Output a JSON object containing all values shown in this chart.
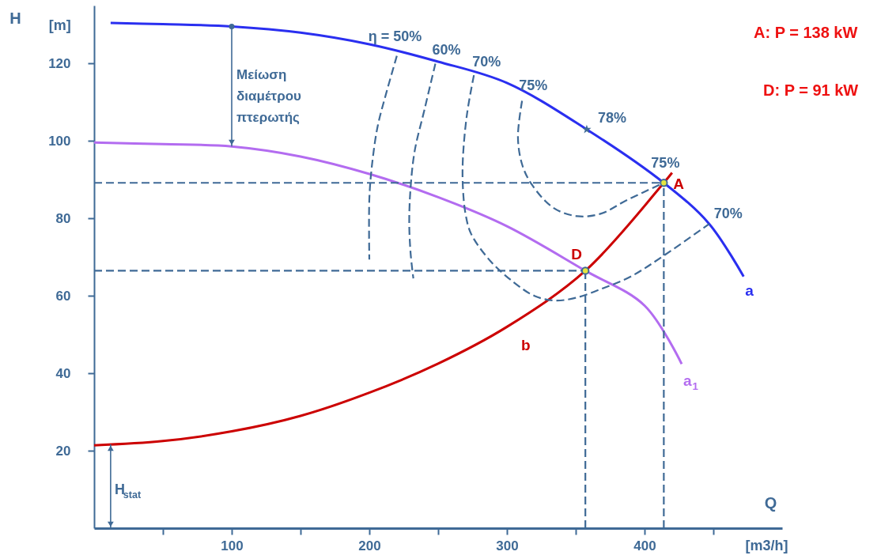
{
  "chart_data": {
    "type": "line",
    "xlabel": "Q",
    "ylabel": "H",
    "xlim": [
      0,
      500
    ],
    "ylim": [
      0,
      135
    ],
    "xticks": [
      {
        "value": 50,
        "label": null
      },
      100,
      {
        "value": 150,
        "label": null
      },
      200,
      {
        "value": 250,
        "label": null
      },
      300,
      {
        "value": 350,
        "label": null
      },
      400,
      {
        "value": 450,
        "label": null
      }
    ],
    "yticks": [
      20,
      40,
      60,
      80,
      100,
      120
    ],
    "series": [
      {
        "name": "a",
        "color": "#2a2ff0",
        "line_style": "solid",
        "x": [
          12,
          50,
          100,
          150,
          200,
          250,
          300,
          358,
          414,
          447,
          472
        ],
        "values": [
          130.5,
          130.2,
          129.6,
          128,
          125,
          120.5,
          115,
          103,
          89.2,
          78.6,
          65
        ]
      },
      {
        "name": "a$_{1}$",
        "color": "#b36cf0",
        "line_style": "solid",
        "x": [
          0,
          50,
          100,
          150,
          200,
          250,
          300,
          357,
          400,
          427
        ],
        "values": [
          99.6,
          99.2,
          98.6,
          96,
          91.5,
          85.5,
          78,
          66.5,
          57.5,
          42.4
        ]
      },
      {
        "name": "b",
        "color": "#cc0000",
        "line_style": "solid",
        "x": [
          0,
          50,
          100,
          150,
          200,
          250,
          300,
          357,
          414,
          420
        ],
        "values": [
          21.4,
          22.5,
          25,
          29,
          35,
          42.5,
          52,
          66.5,
          89.2,
          91.8
        ]
      },
      {
        "color": "#3f6a96",
        "line_style": "dashed",
        "x": [
          220,
          212,
          206,
          202,
          200,
          200
        ],
        "values": [
          122,
          112,
          103.7,
          94,
          85,
          69.4
        ]
      },
      {
        "color": "#3f6a96",
        "line_style": "dashed",
        "x": [
          248,
          240,
          233,
          230,
          229,
          230,
          232
        ],
        "values": [
          120,
          108,
          97.5,
          88,
          79.2,
          71,
          64.5
        ]
      },
      {
        "color": "#3f6a96",
        "line_style": "dashed",
        "x": [
          276,
          271,
          268,
          268,
          270,
          274,
          288,
          305,
          320,
          335,
          350,
          370,
          390,
          414,
          447
        ],
        "values": [
          117,
          107,
          95.5,
          88,
          81,
          76,
          69,
          63.5,
          60,
          58.8,
          59.5,
          62,
          65,
          70.4,
          78.6
        ]
      },
      {
        "color": "#3f6a96",
        "line_style": "dashed",
        "x": [
          311,
          308,
          311,
          318,
          334,
          351,
          368,
          387,
          414
        ],
        "values": [
          110.4,
          101,
          94,
          88.8,
          82.7,
          80.6,
          81.2,
          84.7,
          89.2
        ]
      },
      {
        "color": "#3f6a96",
        "line_style": "dashed",
        "x": [
          0,
          414
        ],
        "values": [
          89.2,
          89.2
        ]
      },
      {
        "color": "#3f6a96",
        "line_style": "dashed",
        "x": [
          414,
          414
        ],
        "values": [
          0,
          89.2
        ]
      },
      {
        "color": "#3f6a96",
        "line_style": "dashed",
        "x": [
          0,
          357
        ],
        "values": [
          66.5,
          66.5
        ]
      },
      {
        "color": "#3f6a96",
        "line_style": "dashed",
        "x": [
          357,
          357
        ],
        "values": [
          0,
          66.5
        ]
      },
      {
        "type": "scatter",
        "marker": "star",
        "color": "#3f6a96",
        "x": [
          358
        ],
        "values": [
          103
        ]
      },
      {
        "type": "scatter",
        "marker": "circle",
        "color": "#e6e640",
        "x": [
          414,
          357
        ],
        "values": [
          89.2,
          66.5
        ]
      }
    ],
    "annotations": [
      "Μείωση διαμέτρου πτερωτής",
      "H$_{stat}$",
      {
        "text": "A",
        "x": 414,
        "y": 89.2
      },
      {
        "text": "D",
        "x": 357,
        "y": 66.5
      },
      {
        "text": "η = 50%",
        "x": 220,
        "y": 122
      },
      {
        "text": "60%",
        "x": 248,
        "y": 120
      },
      {
        "text": "70%",
        "x": 276,
        "y": 117
      },
      {
        "text": "75%",
        "x": 311,
        "y": 110.4
      },
      {
        "text": "78%",
        "x": 358,
        "y": 103
      },
      {
        "text": "75%",
        "x": 414,
        "y": 89.2
      },
      {
        "text": "70%",
        "x": 447,
        "y": 78.6
      },
      "[m]",
      "[m3/h]",
      "A: P = 138 kW",
      "D: P = 91 kW"
    ]
  }
}
